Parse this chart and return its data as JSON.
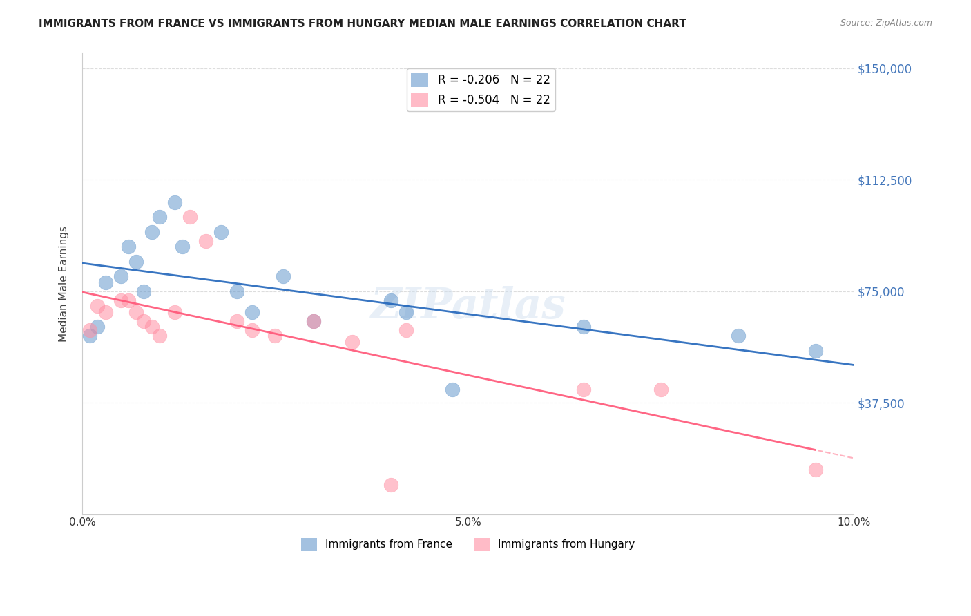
{
  "title": "IMMIGRANTS FROM FRANCE VS IMMIGRANTS FROM HUNGARY MEDIAN MALE EARNINGS CORRELATION CHART",
  "source": "Source: ZipAtlas.com",
  "ylabel": "Median Male Earnings",
  "xlim": [
    0.0,
    0.1
  ],
  "ylim": [
    0,
    155000
  ],
  "yticks": [
    0,
    37500,
    75000,
    112500,
    150000
  ],
  "ytick_labels": [
    "",
    "$37,500",
    "$75,000",
    "$112,500",
    "$150,000"
  ],
  "watermark": "ZIPatlas",
  "france_color": "#6699cc",
  "hungary_color": "#ff8fa3",
  "france_R": -0.206,
  "hungary_R": -0.504,
  "france_N": 22,
  "hungary_N": 22,
  "france_x": [
    0.001,
    0.002,
    0.003,
    0.005,
    0.006,
    0.007,
    0.008,
    0.009,
    0.01,
    0.012,
    0.013,
    0.018,
    0.02,
    0.022,
    0.026,
    0.03,
    0.04,
    0.042,
    0.048,
    0.065,
    0.085,
    0.095
  ],
  "france_y": [
    60000,
    63000,
    78000,
    80000,
    90000,
    85000,
    75000,
    95000,
    100000,
    105000,
    90000,
    95000,
    75000,
    68000,
    80000,
    65000,
    72000,
    68000,
    42000,
    63000,
    60000,
    55000
  ],
  "hungary_x": [
    0.001,
    0.002,
    0.003,
    0.005,
    0.006,
    0.007,
    0.008,
    0.009,
    0.01,
    0.012,
    0.014,
    0.016,
    0.02,
    0.022,
    0.025,
    0.03,
    0.035,
    0.04,
    0.042,
    0.065,
    0.075,
    0.095
  ],
  "hungary_y": [
    62000,
    70000,
    68000,
    72000,
    72000,
    68000,
    65000,
    63000,
    60000,
    68000,
    100000,
    92000,
    65000,
    62000,
    60000,
    65000,
    58000,
    10000,
    62000,
    42000,
    42000,
    15000
  ],
  "background_color": "#ffffff",
  "grid_color": "#dddddd",
  "title_color": "#222222",
  "axis_label_color": "#444444",
  "ytick_color": "#4477bb",
  "xtick_color": "#333333"
}
